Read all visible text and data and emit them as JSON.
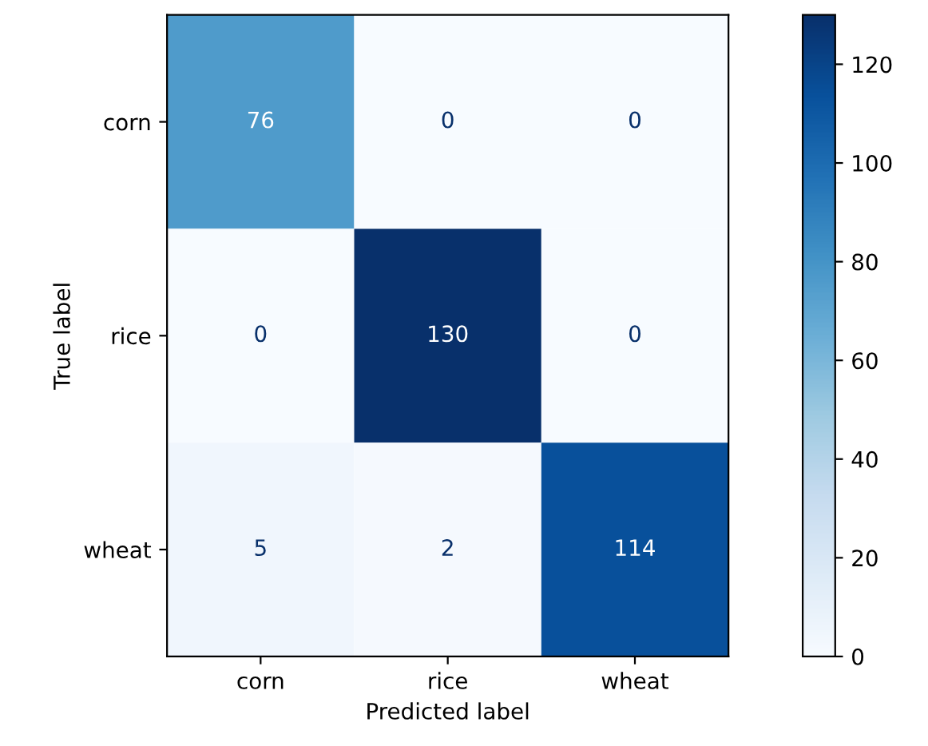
{
  "chart_data": {
    "type": "heatmap",
    "categories": [
      "corn",
      "rice",
      "wheat"
    ],
    "y_categories": [
      "corn",
      "rice",
      "wheat"
    ],
    "cells": [
      [
        76,
        0,
        0
      ],
      [
        0,
        130,
        0
      ],
      [
        5,
        2,
        114
      ]
    ],
    "data_labels": true,
    "xlabel": "Predicted label",
    "ylabel": "True label",
    "clim": [
      0,
      130
    ],
    "cticks": [
      0,
      20,
      40,
      60,
      80,
      100,
      120
    ]
  }
}
